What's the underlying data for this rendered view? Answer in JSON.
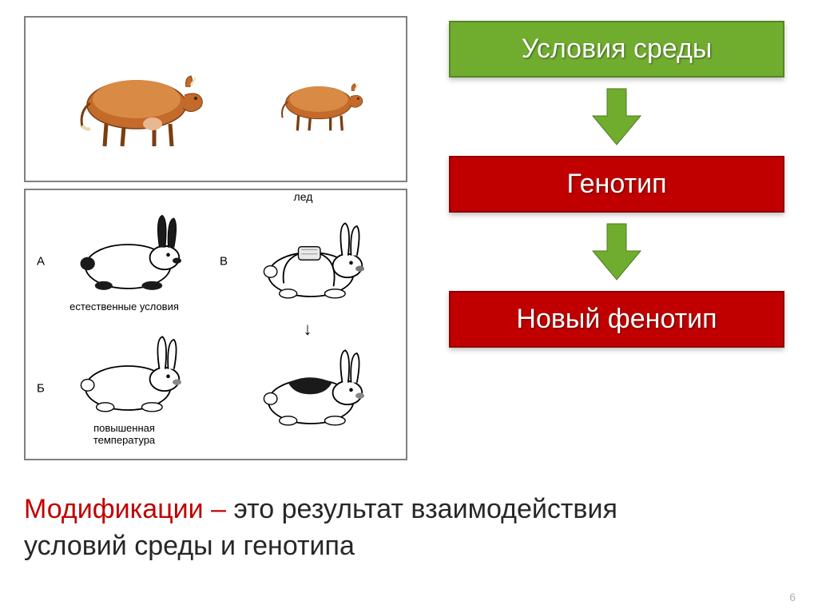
{
  "flow": {
    "box1": {
      "label": "Условия среды",
      "bg": "#70ad2f",
      "border": "#558522"
    },
    "box2": {
      "label": "Генотип",
      "bg": "#c00000",
      "border": "#8e0000"
    },
    "box3": {
      "label": "Новый фенотип",
      "bg": "#c00000",
      "border": "#8e0000"
    },
    "arrow_color": "#70ad2f"
  },
  "rabbits": {
    "ice_label": "лед",
    "cells": {
      "A": {
        "letter": "А",
        "caption": "естественные условия"
      },
      "B": {
        "letter": "Б",
        "caption": "повышенная\nтемпература"
      },
      "V": {
        "letter": "В",
        "caption": ""
      },
      "G": {
        "letter": "",
        "caption": ""
      }
    }
  },
  "definition": {
    "term": "Модификации – ",
    "term_color": "#c00000",
    "text": "это результат взаимодействия условий среды и генотипа"
  },
  "page_number": "6",
  "colors": {
    "frame_border": "#808080",
    "text": "#272727"
  }
}
